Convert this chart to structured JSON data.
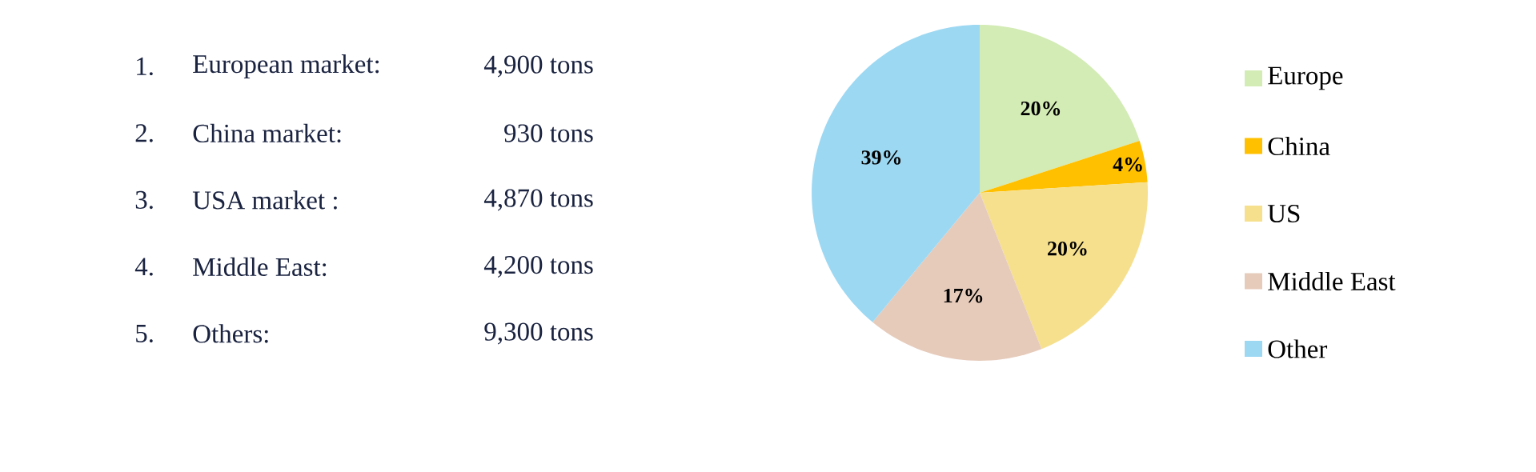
{
  "chart_data": {
    "type": "pie",
    "categories": [
      "Europe",
      "China",
      "US",
      "Middle East",
      "Other"
    ],
    "values": [
      20,
      4,
      20,
      17,
      39
    ],
    "value_labels": [
      "20%",
      "4%",
      "20%",
      "17%",
      "39%"
    ],
    "colors": [
      "#d3ebb5",
      "#ffc000",
      "#f6e08e",
      "#e6cbbb",
      "#9dd8f3"
    ],
    "legend": "right",
    "annotations": [
      "1.",
      "European market:",
      "4,900 tons",
      "2.",
      "China market:",
      "930 tons",
      "3.",
      "USA market :",
      "4,870 tons",
      "4.",
      "Middle East:",
      "4,200 tons",
      "5.",
      "Others:",
      "9,300 tons"
    ]
  }
}
